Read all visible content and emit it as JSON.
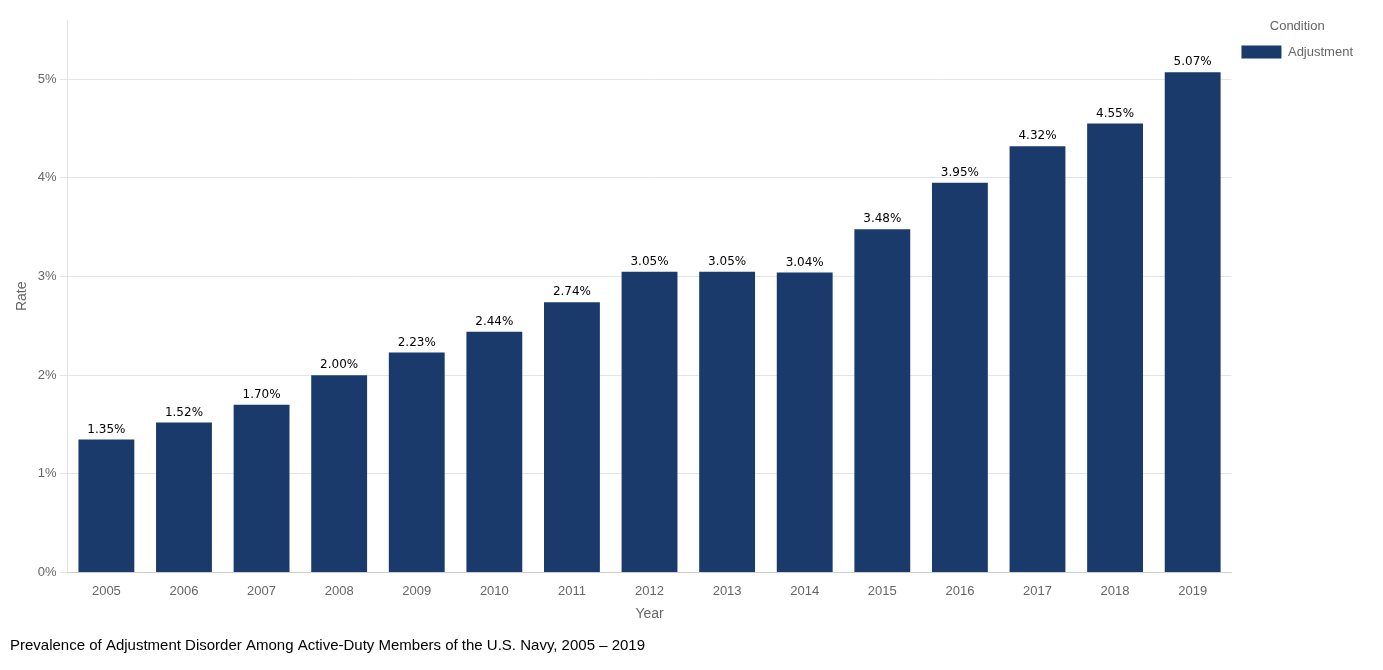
{
  "chart_data": {
    "type": "bar",
    "title": "Prevalence of Adjustment Disorder Among Active-Duty Members of the U.S. Navy, 2005 – 2019",
    "x_label": "Year",
    "y_label": "Rate",
    "categories": [
      "2005",
      "2006",
      "2007",
      "2008",
      "2009",
      "2010",
      "2011",
      "2012",
      "2013",
      "2014",
      "2015",
      "2016",
      "2017",
      "2018",
      "2019"
    ],
    "series": [
      {
        "name": "Adjustment",
        "color": "#1a3a6b",
        "values": [
          1.35,
          1.52,
          1.7,
          2.0,
          2.23,
          2.44,
          2.74,
          3.05,
          3.05,
          3.04,
          3.48,
          3.95,
          4.32,
          4.55,
          5.07
        ],
        "value_labels": [
          "1.35%",
          "1.52%",
          "1.70%",
          "2.00%",
          "2.23%",
          "2.44%",
          "2.74%",
          "3.05%",
          "3.05%",
          "3.04%",
          "3.48%",
          "3.95%",
          "4.32%",
          "4.55%",
          "5.07%"
        ]
      }
    ],
    "legend_title": "Condition",
    "legend": "right",
    "data_labels": true,
    "grid": true,
    "ylim": [
      0,
      5.6
    ],
    "yticks": [
      {
        "value": 0,
        "label": "0%"
      },
      {
        "value": 1,
        "label": "1%"
      },
      {
        "value": 2,
        "label": "2%"
      },
      {
        "value": 3,
        "label": "3%"
      },
      {
        "value": 4,
        "label": "4%"
      },
      {
        "value": 5,
        "label": "5%"
      }
    ]
  }
}
